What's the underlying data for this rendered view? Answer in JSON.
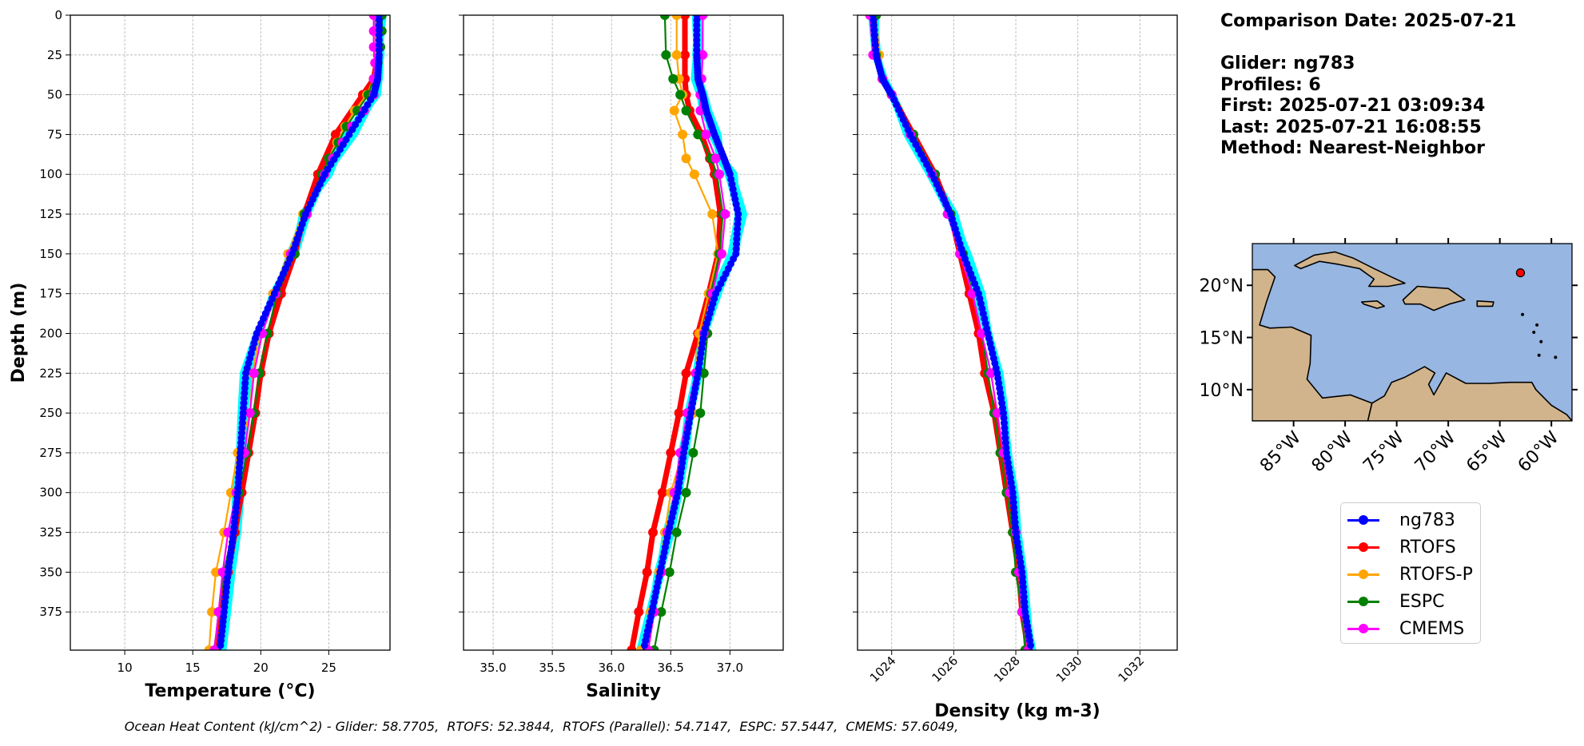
{
  "info": {
    "comparison_date": "Comparison Date: 2025-07-21",
    "glider": "Glider: ng783",
    "profiles": "Profiles: 6",
    "first": "First: 2025-07-21 03:09:34",
    "last": "Last: 2025-07-21 16:08:55",
    "method": "Method: Nearest-Neighbor"
  },
  "footer": "Ocean Heat Content (kJ/cm^2) - Glider: 58.7705,  RTOFS: 52.3844,  RTOFS (Parallel): 54.7147,  ESPC: 57.5447,  CMEMS: 57.6049,",
  "colors": {
    "ng783": "#0000ff",
    "RTOFS": "#ff0000",
    "RTOFS-P": "#ffa500",
    "ESPC": "#008000",
    "CMEMS": "#ff00ff",
    "glider_profiles": "#00ffff",
    "land": "#d2b48c",
    "ocean": "#97b6e1"
  },
  "legend": [
    {
      "key": "ng783",
      "label": "ng783",
      "color": "#0000ff"
    },
    {
      "key": "RTOFS",
      "label": "RTOFS",
      "color": "#ff0000"
    },
    {
      "key": "RTOFS-P",
      "label": "RTOFS-P",
      "color": "#ffa500"
    },
    {
      "key": "ESPC",
      "label": "ESPC",
      "color": "#008000"
    },
    {
      "key": "CMEMS",
      "label": "CMEMS",
      "color": "#ff00ff"
    }
  ],
  "chart_data": [
    {
      "type": "line",
      "xlabel": "Temperature (°C)",
      "ylabel": "Depth (m)",
      "xlim": [
        6,
        29.5
      ],
      "ylim": [
        399,
        0
      ],
      "xticks": [
        "10",
        "15",
        "20",
        "25"
      ],
      "yticks": [
        "0",
        "25",
        "50",
        "75",
        "100",
        "125",
        "150",
        "175",
        "200",
        "225",
        "250",
        "275",
        "300",
        "325",
        "350",
        "375"
      ],
      "grid": true,
      "series": [
        {
          "name": "ng783",
          "depth": [
            0,
            25,
            40,
            50,
            75,
            100,
            125,
            150,
            175,
            200,
            225,
            250,
            275,
            300,
            325,
            350,
            375,
            399
          ],
          "values": [
            28.7,
            28.7,
            28.6,
            28.3,
            26.5,
            24.7,
            23.3,
            22.3,
            21.0,
            19.7,
            18.9,
            18.7,
            18.5,
            18.3,
            18.0,
            17.6,
            17.3,
            17.0
          ]
        },
        {
          "name": "RTOFS",
          "depth": [
            0,
            25,
            40,
            50,
            75,
            100,
            125,
            150,
            175,
            200,
            225,
            250,
            275,
            300,
            325,
            350,
            375,
            399
          ],
          "values": [
            28.6,
            28.6,
            28.3,
            27.5,
            25.5,
            24.2,
            23.2,
            22.5,
            21.5,
            20.6,
            20.0,
            19.6,
            19.1,
            18.6,
            18.1,
            17.6,
            17.1,
            16.7
          ]
        },
        {
          "name": "RTOFS-P",
          "depth": [
            0,
            10,
            20,
            30,
            40,
            50,
            60,
            70,
            80,
            90,
            100,
            125,
            150,
            175,
            200,
            225,
            250,
            275,
            300,
            325,
            350,
            375,
            399
          ],
          "values": [
            28.5,
            28.5,
            28.5,
            28.4,
            28.3,
            27.8,
            26.9,
            26.2,
            25.6,
            25.0,
            24.6,
            23.1,
            22.0,
            20.9,
            19.9,
            19.4,
            19.2,
            18.3,
            17.8,
            17.3,
            16.7,
            16.4,
            16.2
          ]
        },
        {
          "name": "ESPC",
          "depth": [
            0,
            10,
            20,
            30,
            40,
            50,
            60,
            70,
            80,
            90,
            100,
            125,
            150,
            175,
            200,
            225,
            250,
            275,
            300,
            325,
            350,
            375,
            399
          ],
          "values": [
            28.9,
            28.9,
            28.8,
            28.6,
            28.3,
            27.9,
            27.1,
            26.3,
            25.7,
            25.0,
            24.5,
            23.2,
            22.5,
            21.2,
            20.5,
            19.9,
            19.5,
            19.0,
            18.4,
            17.9,
            17.3,
            16.9,
            16.6
          ]
        },
        {
          "name": "CMEMS",
          "depth": [
            0,
            10,
            20,
            30,
            40,
            50,
            60,
            70,
            80,
            90,
            100,
            125,
            150,
            175,
            200,
            225,
            250,
            275,
            300,
            325,
            350,
            375,
            399
          ],
          "values": [
            28.3,
            28.3,
            28.3,
            28.4,
            28.3,
            28.3,
            27.6,
            26.7,
            26.0,
            25.3,
            24.7,
            23.4,
            22.2,
            21.1,
            20.1,
            19.5,
            19.2,
            18.8,
            18.2,
            17.6,
            17.2,
            16.9,
            16.6
          ]
        }
      ]
    },
    {
      "type": "line",
      "xlabel": "Salinity",
      "xlim": [
        34.75,
        37.45
      ],
      "ylim": [
        399,
        0
      ],
      "xticks": [
        "35.0",
        "35.5",
        "36.0",
        "36.5",
        "37.0"
      ],
      "grid": true,
      "series": [
        {
          "name": "ng783",
          "depth": [
            0,
            25,
            40,
            50,
            60,
            75,
            90,
            100,
            125,
            150,
            175,
            200,
            225,
            250,
            275,
            300,
            325,
            350,
            375,
            399
          ],
          "values": [
            36.72,
            36.72,
            36.73,
            36.77,
            36.8,
            36.87,
            36.95,
            37.0,
            37.07,
            37.05,
            36.88,
            36.78,
            36.73,
            36.67,
            36.61,
            36.56,
            36.48,
            36.41,
            36.34,
            36.27
          ]
        },
        {
          "name": "RTOFS",
          "depth": [
            0,
            25,
            40,
            50,
            60,
            75,
            90,
            100,
            125,
            150,
            175,
            200,
            225,
            250,
            275,
            300,
            325,
            350,
            375,
            399
          ],
          "values": [
            36.62,
            36.62,
            36.62,
            36.63,
            36.66,
            36.76,
            36.83,
            36.87,
            36.92,
            36.9,
            36.82,
            36.73,
            36.63,
            36.57,
            36.5,
            36.43,
            36.35,
            36.3,
            36.23,
            36.17
          ]
        },
        {
          "name": "RTOFS-P",
          "depth": [
            0,
            25,
            40,
            50,
            60,
            75,
            90,
            100,
            125,
            150,
            175,
            200,
            225,
            250,
            275,
            300,
            325,
            350,
            375,
            399
          ],
          "values": [
            36.55,
            36.55,
            36.57,
            36.6,
            36.53,
            36.6,
            36.63,
            36.7,
            36.85,
            36.9,
            36.82,
            36.74,
            36.71,
            36.69,
            36.6,
            36.5,
            36.45,
            36.4,
            36.33,
            36.25
          ]
        },
        {
          "name": "ESPC",
          "depth": [
            0,
            25,
            40,
            50,
            60,
            75,
            90,
            100,
            125,
            150,
            175,
            200,
            225,
            250,
            275,
            300,
            325,
            350,
            375,
            399
          ],
          "values": [
            36.45,
            36.46,
            36.52,
            36.58,
            36.63,
            36.73,
            36.84,
            36.89,
            36.94,
            36.91,
            36.84,
            36.81,
            36.78,
            36.75,
            36.69,
            36.63,
            36.55,
            36.49,
            36.42,
            36.36
          ]
        },
        {
          "name": "CMEMS",
          "depth": [
            0,
            25,
            40,
            50,
            60,
            75,
            90,
            100,
            125,
            150,
            175,
            200,
            225,
            250,
            275,
            300,
            325,
            350,
            375,
            399
          ],
          "values": [
            36.77,
            36.77,
            36.76,
            36.75,
            36.75,
            36.8,
            36.88,
            36.91,
            36.96,
            36.93,
            36.85,
            36.78,
            36.71,
            36.64,
            36.58,
            36.53,
            36.47,
            36.42,
            36.36,
            36.31
          ]
        }
      ]
    },
    {
      "type": "line",
      "xlabel": "Density (kg m-3)",
      "xlim": [
        1022.9,
        1033.2
      ],
      "ylim": [
        399,
        0
      ],
      "xticks": [
        "1024",
        "1026",
        "1028",
        "1030",
        "1032"
      ],
      "grid": true,
      "series": [
        {
          "name": "ng783",
          "depth": [
            0,
            25,
            40,
            50,
            75,
            100,
            125,
            150,
            175,
            200,
            225,
            250,
            275,
            300,
            325,
            350,
            375,
            399
          ],
          "values": [
            1023.4,
            1023.5,
            1023.7,
            1024.0,
            1024.6,
            1025.3,
            1025.9,
            1026.3,
            1026.8,
            1027.1,
            1027.4,
            1027.6,
            1027.7,
            1027.9,
            1028.0,
            1028.2,
            1028.3,
            1028.5
          ]
        },
        {
          "name": "RTOFS",
          "depth": [
            0,
            25,
            40,
            50,
            75,
            100,
            125,
            150,
            175,
            200,
            225,
            250,
            275,
            300,
            325,
            350,
            375,
            399
          ],
          "values": [
            1023.4,
            1023.5,
            1023.7,
            1024.0,
            1024.7,
            1025.4,
            1025.9,
            1026.2,
            1026.5,
            1026.8,
            1027.0,
            1027.3,
            1027.5,
            1027.7,
            1027.9,
            1028.1,
            1028.2,
            1028.4
          ]
        },
        {
          "name": "RTOFS-P",
          "depth": [
            0,
            25,
            40,
            50,
            75,
            100,
            125,
            150,
            175,
            200,
            225,
            250,
            275,
            300,
            325,
            350,
            375,
            399
          ],
          "values": [
            1023.5,
            1023.6,
            1023.7,
            1024.0,
            1024.7,
            1025.4,
            1025.9,
            1026.3,
            1026.6,
            1026.9,
            1027.1,
            1027.3,
            1027.5,
            1027.7,
            1027.9,
            1028.0,
            1028.2,
            1028.3
          ]
        },
        {
          "name": "ESPC",
          "depth": [
            0,
            25,
            40,
            50,
            75,
            100,
            125,
            150,
            175,
            200,
            225,
            250,
            275,
            300,
            325,
            350,
            375,
            399
          ],
          "values": [
            1023.5,
            1023.5,
            1023.7,
            1024.0,
            1024.7,
            1025.4,
            1025.9,
            1026.3,
            1026.6,
            1026.9,
            1027.1,
            1027.3,
            1027.5,
            1027.7,
            1027.9,
            1028.0,
            1028.2,
            1028.3
          ]
        },
        {
          "name": "CMEMS",
          "depth": [
            0,
            25,
            40,
            50,
            75,
            100,
            125,
            150,
            175,
            200,
            225,
            250,
            275,
            300,
            325,
            350,
            375,
            399
          ],
          "values": [
            1023.3,
            1023.4,
            1023.7,
            1024.0,
            1024.6,
            1025.3,
            1025.8,
            1026.2,
            1026.6,
            1026.9,
            1027.2,
            1027.4,
            1027.6,
            1027.8,
            1028.0,
            1028.1,
            1028.2,
            1028.4
          ]
        }
      ]
    }
  ],
  "map": {
    "xticks": [
      "85°W",
      "80°W",
      "75°W",
      "70°W",
      "65°W",
      "60°W"
    ],
    "yticks": [
      "20°N",
      "15°N",
      "10°N"
    ],
    "lon_range": [
      -89,
      -58
    ],
    "lat_range": [
      7,
      24
    ],
    "glider_position": {
      "lon": -63,
      "lat": 21.2
    }
  }
}
